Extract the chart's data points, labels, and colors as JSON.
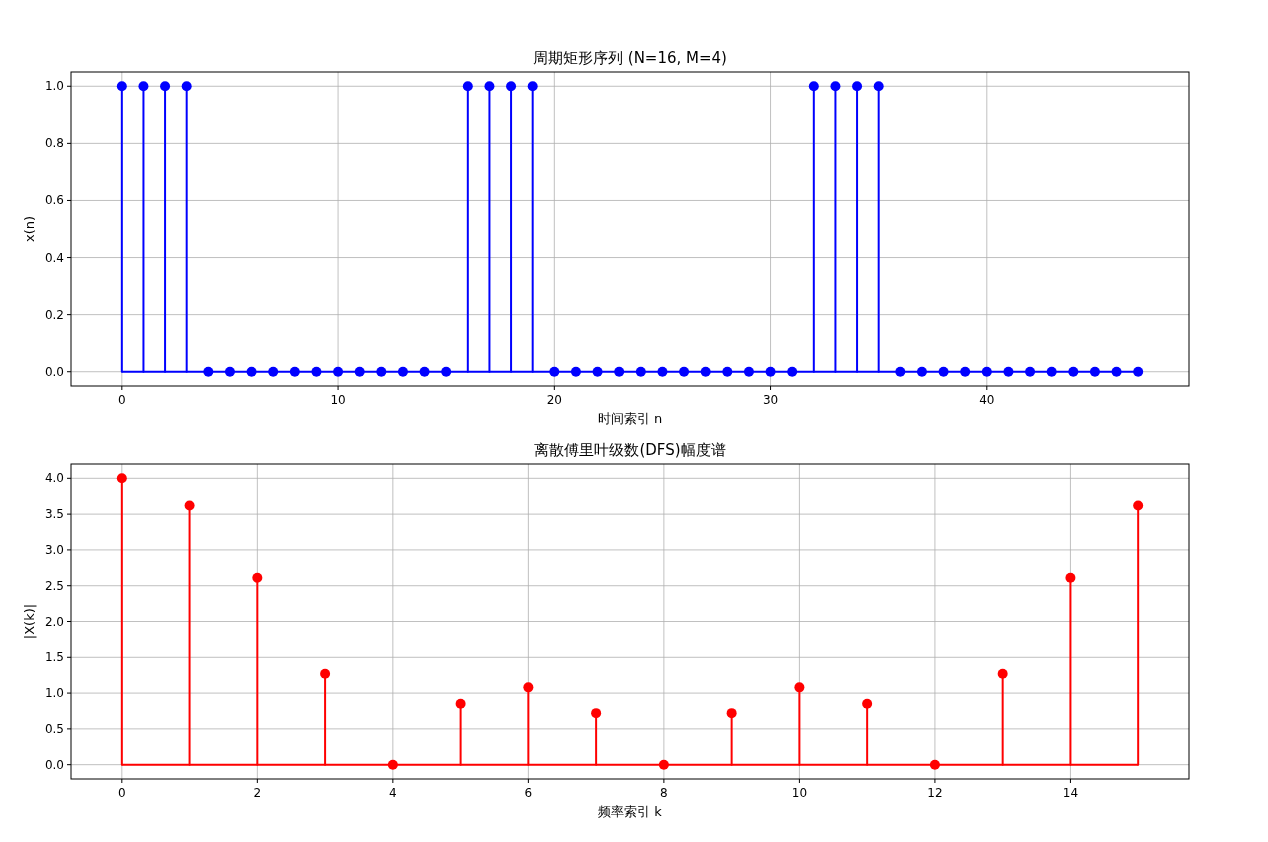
{
  "chart_data": [
    {
      "type": "lollipop",
      "title": "周期矩形序列 (N=16, M=4)",
      "xlabel": "时间索引 n",
      "ylabel": "x(n)",
      "x": [
        0,
        1,
        2,
        3,
        4,
        5,
        6,
        7,
        8,
        9,
        10,
        11,
        12,
        13,
        14,
        15,
        16,
        17,
        18,
        19,
        20,
        21,
        22,
        23,
        24,
        25,
        26,
        27,
        28,
        29,
        30,
        31,
        32,
        33,
        34,
        35,
        36,
        37,
        38,
        39,
        40,
        41,
        42,
        43,
        44,
        45,
        46,
        47
      ],
      "series": [
        {
          "color": "#0000ff",
          "values": [
            1,
            1,
            1,
            1,
            0,
            0,
            0,
            0,
            0,
            0,
            0,
            0,
            0,
            0,
            0,
            0,
            1,
            1,
            1,
            1,
            0,
            0,
            0,
            0,
            0,
            0,
            0,
            0,
            0,
            0,
            0,
            0,
            1,
            1,
            1,
            1,
            0,
            0,
            0,
            0,
            0,
            0,
            0,
            0,
            0,
            0,
            0,
            0
          ]
        }
      ],
      "xlim": [
        -2.35,
        49.35
      ],
      "xticks": [
        0,
        10,
        20,
        30,
        40
      ],
      "ylim": [
        -0.05,
        1.05
      ],
      "yticks": [
        {
          "value": 0,
          "label": "0.0"
        },
        {
          "value": 0.2,
          "label": "0.2"
        },
        {
          "value": 0.4,
          "label": "0.4"
        },
        {
          "value": 0.6,
          "label": "0.6"
        },
        {
          "value": 0.8,
          "label": "0.8"
        },
        {
          "value": 1,
          "label": "1.0"
        }
      ],
      "grid": true,
      "marker": "circle"
    },
    {
      "type": "lollipop",
      "title": "离散傅里叶级数(DFS)幅度谱",
      "xlabel": "频率索引 k",
      "ylabel": "|X(k)|",
      "x": [
        0,
        1,
        2,
        3,
        4,
        5,
        6,
        7,
        8,
        9,
        10,
        11,
        12,
        13,
        14,
        15
      ],
      "series": [
        {
          "color": "#ff0000",
          "values": [
            4,
            3.62,
            2.61,
            1.27,
            0,
            0.85,
            1.08,
            0.72,
            0,
            0.72,
            1.08,
            0.85,
            0,
            1.27,
            2.61,
            3.62
          ]
        }
      ],
      "xlim": [
        -0.75,
        15.75
      ],
      "xticks": [
        0,
        2,
        4,
        6,
        8,
        10,
        12,
        14
      ],
      "ylim": [
        -0.2,
        4.2
      ],
      "yticks": [
        {
          "value": 0,
          "label": "0.0"
        },
        {
          "value": 0.5,
          "label": "0.5"
        },
        {
          "value": 1,
          "label": "1.0"
        },
        {
          "value": 1.5,
          "label": "1.5"
        },
        {
          "value": 2,
          "label": "2.0"
        },
        {
          "value": 2.5,
          "label": "2.5"
        },
        {
          "value": 3,
          "label": "3.0"
        },
        {
          "value": 3.5,
          "label": "3.5"
        },
        {
          "value": 4,
          "label": "4.0"
        }
      ],
      "grid": true,
      "marker": "circle"
    }
  ]
}
